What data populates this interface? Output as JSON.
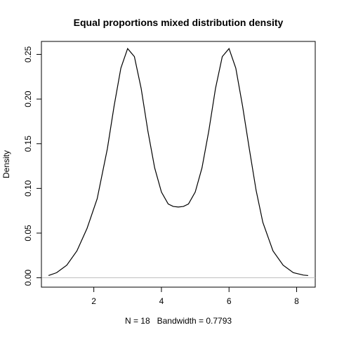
{
  "chart_data": {
    "type": "line",
    "title": "Equal proportions mixed distribution density",
    "xlabel": "N = 18   Bandwidth = 0.7793",
    "ylabel": "Density",
    "xlim": [
      0.45,
      8.55
    ],
    "ylim": [
      -0.0105,
      0.2645
    ],
    "x_ticks": [
      2,
      4,
      6,
      8
    ],
    "y_ticks": [
      0.0,
      0.05,
      0.1,
      0.15,
      0.2,
      0.25
    ],
    "x_tick_labels": [
      "2",
      "4",
      "6",
      "8"
    ],
    "y_tick_labels": [
      "0.00",
      "0.05",
      "0.10",
      "0.15",
      "0.20",
      "0.25"
    ],
    "baseline": 0,
    "grid": false,
    "series": [
      {
        "x": [
          0.66,
          0.9,
          1.2,
          1.5,
          1.8,
          2.1,
          2.4,
          2.6,
          2.8,
          3.0,
          3.2,
          3.4,
          3.6,
          3.8,
          4.0,
          4.2,
          4.35,
          4.5,
          4.65,
          4.8,
          5.0,
          5.2,
          5.4,
          5.6,
          5.8,
          6.0,
          6.2,
          6.4,
          6.6,
          6.8,
          7.0,
          7.3,
          7.6,
          7.9,
          8.2,
          8.34
        ],
        "y": [
          0.0025,
          0.0057,
          0.0141,
          0.0301,
          0.0553,
          0.0885,
          0.1443,
          0.1922,
          0.2346,
          0.2565,
          0.2475,
          0.212,
          0.164,
          0.123,
          0.0959,
          0.0826,
          0.0798,
          0.0792,
          0.0798,
          0.0826,
          0.0959,
          0.123,
          0.164,
          0.212,
          0.2475,
          0.2565,
          0.2346,
          0.1922,
          0.1443,
          0.098,
          0.062,
          0.0301,
          0.0141,
          0.0057,
          0.003,
          0.0025
        ]
      }
    ]
  }
}
